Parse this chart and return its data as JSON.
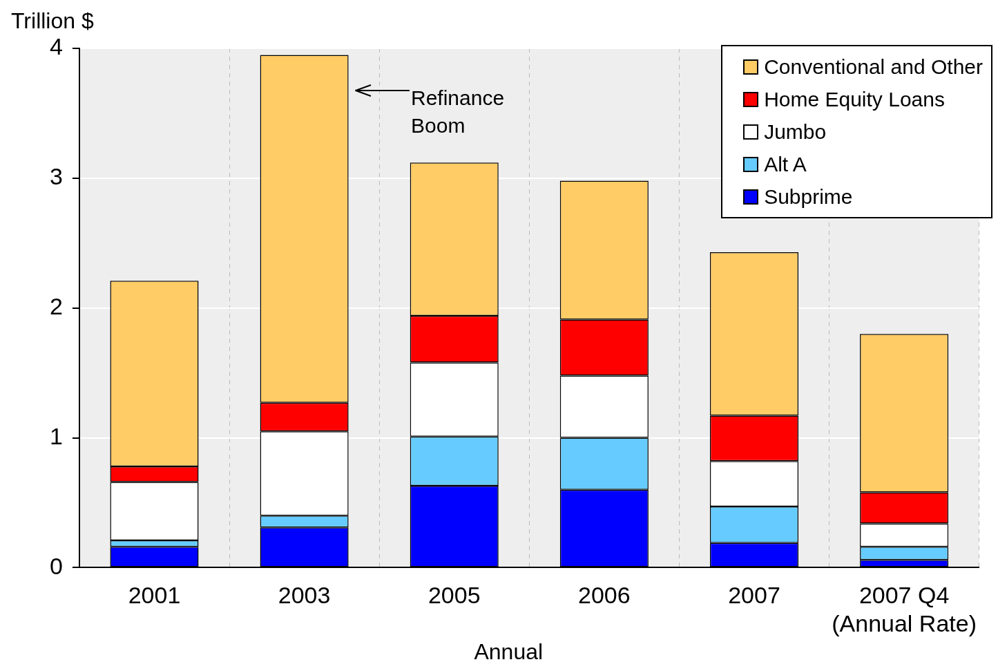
{
  "chart_data": {
    "type": "bar",
    "stacked": true,
    "ylabel": "Trillion $",
    "xlabel": "Annual",
    "categories": [
      "2001",
      "2003",
      "2005",
      "2006",
      "2007",
      "2007 Q4\n(Annual Rate)"
    ],
    "series": [
      {
        "name": "Subprime",
        "color": "#0000ff",
        "values": [
          0.16,
          0.31,
          0.63,
          0.6,
          0.19,
          0.06
        ]
      },
      {
        "name": "Alt A",
        "color": "#66ccff",
        "values": [
          0.05,
          0.09,
          0.38,
          0.4,
          0.28,
          0.1
        ]
      },
      {
        "name": "Jumbo",
        "color": "#ffffff",
        "values": [
          0.45,
          0.65,
          0.57,
          0.48,
          0.35,
          0.18
        ]
      },
      {
        "name": "Home Equity Loans",
        "color": "#ff0000",
        "values": [
          0.12,
          0.22,
          0.36,
          0.43,
          0.35,
          0.24
        ]
      },
      {
        "name": "Conventional and Other",
        "color": "#ffcc66",
        "values": [
          1.43,
          2.68,
          1.18,
          1.07,
          1.26,
          1.22
        ]
      }
    ],
    "ylim": [
      0,
      4
    ],
    "yticks": [
      0,
      1,
      2,
      3,
      4
    ],
    "grid": true,
    "legend": "top right",
    "annotations": [
      "Refinance\nBoom"
    ]
  }
}
